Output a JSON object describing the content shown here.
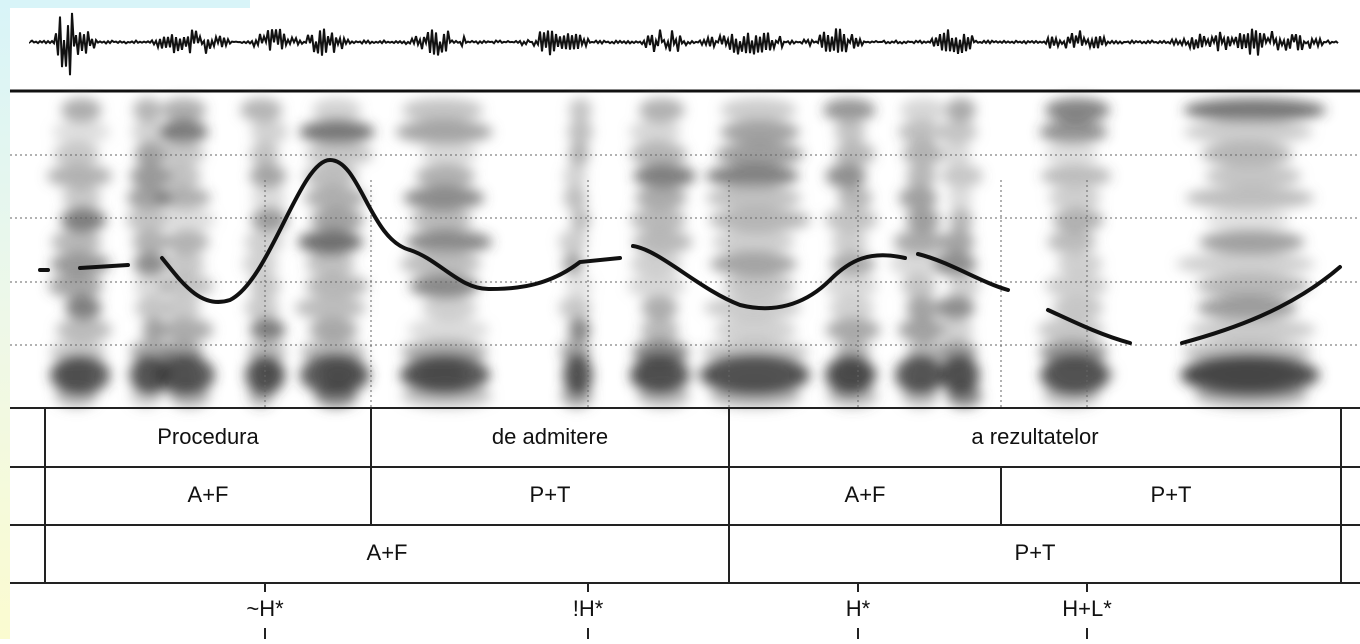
{
  "tiers": [
    {
      "intervals": [
        "Procedura",
        "de admitere",
        "a rezultatelor"
      ]
    },
    {
      "intervals": [
        "A+F",
        "P+T",
        "A+F",
        "P+T"
      ]
    },
    {
      "intervals": [
        "A+F",
        "P+T"
      ]
    }
  ],
  "points": [
    "~H*",
    "!H*",
    "H*",
    "H+L*"
  ]
}
